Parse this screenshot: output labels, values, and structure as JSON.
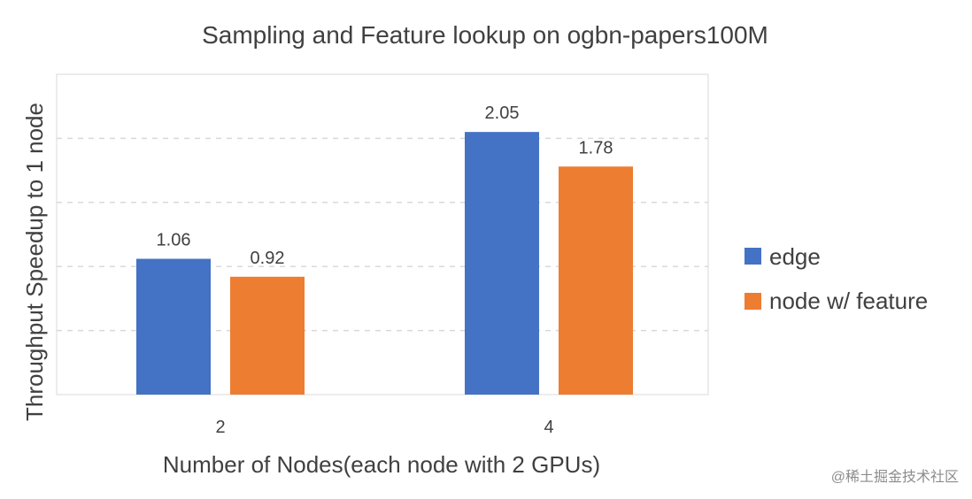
{
  "chart_data": {
    "type": "bar",
    "title": "Sampling and Feature lookup on ogbn-papers100M",
    "xlabel": "Number of Nodes(each node with 2 GPUs)",
    "ylabel": "Throughput Speedup to  1 node",
    "categories": [
      "2",
      "4"
    ],
    "series": [
      {
        "name": "edge",
        "color": "#4472C4",
        "values": [
          1.06,
          2.05
        ],
        "labels": [
          "1.06",
          "2.05"
        ]
      },
      {
        "name": "node w/ feature",
        "color": "#ED7D31",
        "values": [
          0.92,
          1.78
        ],
        "labels": [
          "0.92",
          "1.78"
        ]
      }
    ],
    "ylim": [
      0,
      2.5
    ],
    "grid": true,
    "legend": "right"
  },
  "watermark": "@稀土掘金技术社区"
}
